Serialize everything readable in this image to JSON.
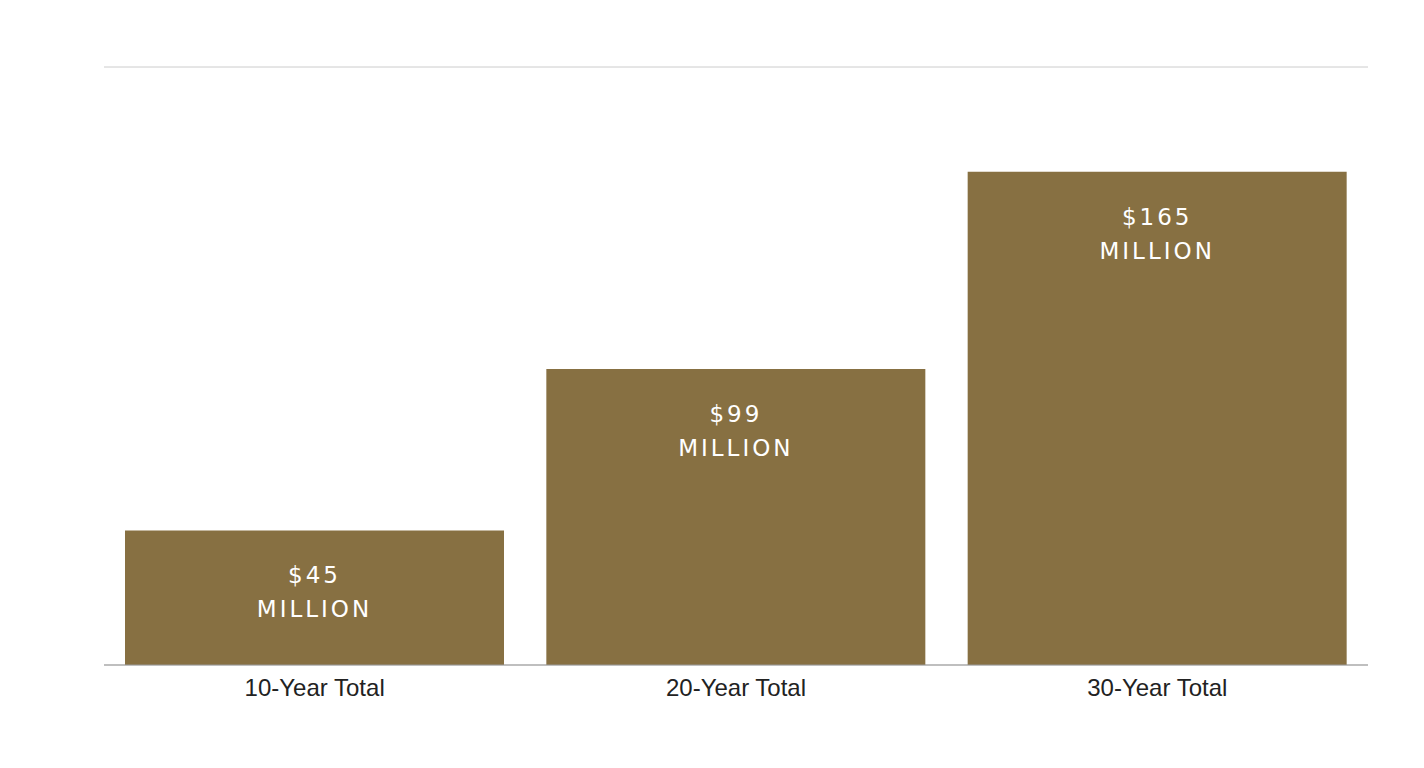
{
  "chart_data": {
    "type": "bar",
    "categories": [
      "10-Year Total",
      "20-Year Total",
      "30-Year Total"
    ],
    "values": [
      45,
      99,
      165
    ],
    "value_labels": [
      "$45 MILLION",
      "$99 MILLION",
      "$165 MILLION"
    ],
    "data_labels": true,
    "color": "#877042",
    "ylim": [
      0,
      200
    ],
    "yticks": [
      0,
      50,
      100,
      150,
      200
    ],
    "grid": true,
    "tick_labels": "x"
  }
}
